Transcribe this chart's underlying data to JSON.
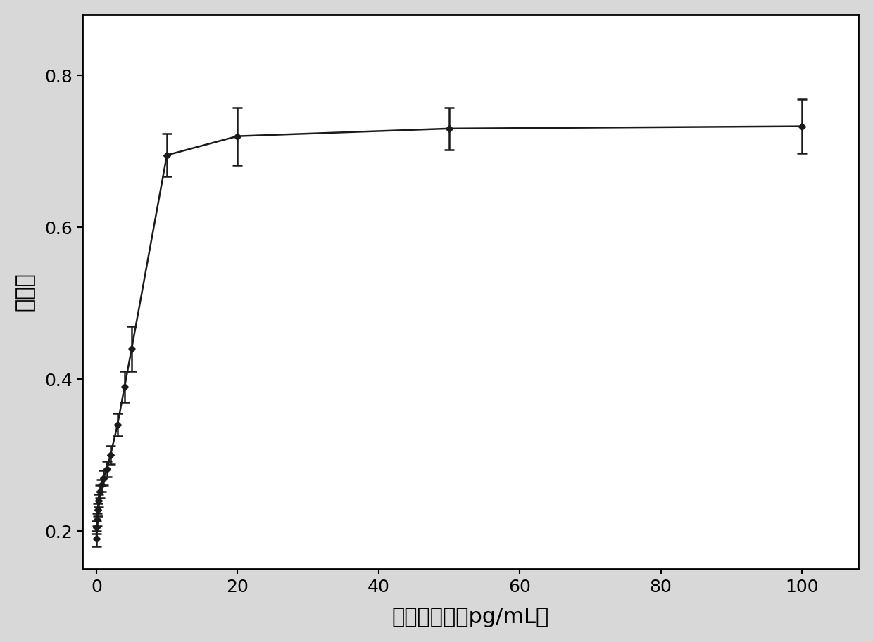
{
  "x_data": [
    0.0,
    0.05,
    0.1,
    0.2,
    0.3,
    0.5,
    0.7,
    1.0,
    1.5,
    2.0,
    3.0,
    4.0,
    5.0,
    10.0,
    20.0,
    50.0,
    100.0
  ],
  "y_data": [
    0.19,
    0.205,
    0.215,
    0.228,
    0.24,
    0.252,
    0.26,
    0.27,
    0.282,
    0.3,
    0.34,
    0.39,
    0.44,
    0.695,
    0.72,
    0.73,
    0.733
  ],
  "y_err": [
    0.01,
    0.008,
    0.008,
    0.008,
    0.008,
    0.008,
    0.008,
    0.01,
    0.01,
    0.012,
    0.015,
    0.02,
    0.03,
    0.028,
    0.038,
    0.028,
    0.036
  ],
  "xlabel": "凝血醂浓度（pg/mL）",
  "ylabel": "吸光度",
  "xlim": [
    -2,
    108
  ],
  "ylim": [
    0.15,
    0.88
  ],
  "xticks": [
    0,
    20,
    40,
    60,
    80,
    100
  ],
  "yticks": [
    0.2,
    0.4,
    0.6,
    0.8
  ],
  "marker": "D",
  "marker_color": "#1a1a1a",
  "line_color": "#1a1a1a",
  "marker_size": 5,
  "line_width": 1.8,
  "xlabel_fontsize": 22,
  "ylabel_fontsize": 22,
  "tick_fontsize": 18,
  "figure_facecolor": "#d8d8d8",
  "axes_facecolor": "#ffffff"
}
